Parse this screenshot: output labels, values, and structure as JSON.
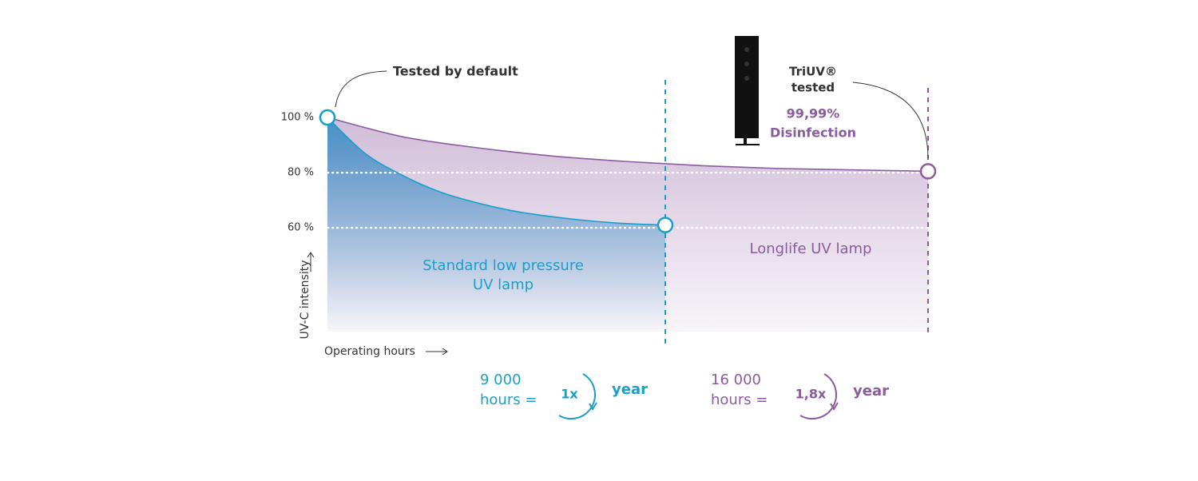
{
  "chart_data": {
    "type": "line",
    "y_label": "UV-C intensity",
    "x_label": "Operating hours",
    "xlim": [
      0,
      16000
    ],
    "ylim": [
      25,
      100
    ],
    "yticks": [
      {
        "value": 100,
        "label": "100 %"
      },
      {
        "value": 80,
        "label": "80 %"
      },
      {
        "value": 60,
        "label": "60 %"
      }
    ],
    "grid": true,
    "series": [
      {
        "name": "Longlife UV lamp",
        "color": "#8b5a9f",
        "x": [
          0,
          2000,
          4000,
          6000,
          8000,
          10000,
          12000,
          14000,
          16000
        ],
        "values": [
          100,
          93,
          89,
          86,
          84,
          82.5,
          81.5,
          81,
          80.5
        ]
      },
      {
        "name": "Standard low pressure UV lamp",
        "color": "#1a9fcb",
        "x": [
          0,
          1000,
          2000,
          3000,
          4000,
          5000,
          6000,
          7000,
          8000,
          9000
        ],
        "values": [
          100,
          87,
          79,
          73,
          69,
          66,
          64,
          62.5,
          61.5,
          61
        ]
      }
    ],
    "annotations": {
      "default": "Tested by default",
      "triuv": "TriUV®",
      "tested": "tested",
      "percent": "99,99%",
      "disinfection": "Disinfection",
      "std_hours": "9 000",
      "std_eq": "hours =",
      "std_factor": "1x",
      "std_year": "year",
      "long_hours": "16 000",
      "long_eq": "hours =",
      "long_factor": "1,8x",
      "long_year": "year"
    }
  }
}
